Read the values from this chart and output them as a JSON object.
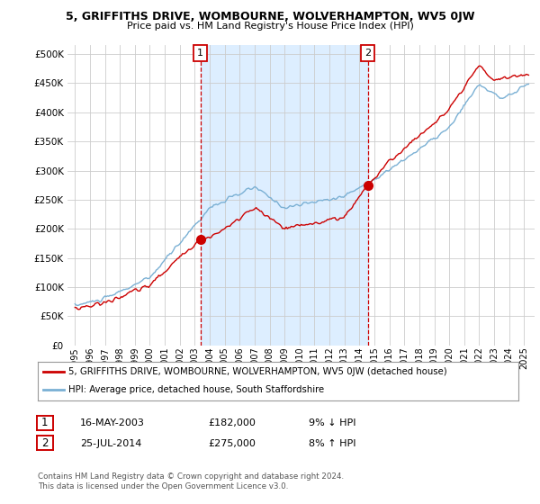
{
  "title": "5, GRIFFITHS DRIVE, WOMBOURNE, WOLVERHAMPTON, WV5 0JW",
  "subtitle": "Price paid vs. HM Land Registry's House Price Index (HPI)",
  "ytick_values": [
    0,
    50000,
    100000,
    150000,
    200000,
    250000,
    300000,
    350000,
    400000,
    450000,
    500000
  ],
  "ylim": [
    0,
    515000
  ],
  "xlim_start": 1994.5,
  "xlim_end": 2025.7,
  "line1_color": "#cc0000",
  "line2_color": "#7ab0d4",
  "shade_color": "#ddeeff",
  "marker1_date": 2003.37,
  "marker1_value": 182000,
  "marker1_label": "1",
  "marker2_date": 2014.56,
  "marker2_value": 275000,
  "marker2_label": "2",
  "vline1_x": 2003.37,
  "vline2_x": 2014.56,
  "legend_line1": "5, GRIFFITHS DRIVE, WOMBOURNE, WOLVERHAMPTON, WV5 0JW (detached house)",
  "legend_line2": "HPI: Average price, detached house, South Staffordshire",
  "table_row1_num": "1",
  "table_row1_date": "16-MAY-2003",
  "table_row1_price": "£182,000",
  "table_row1_hpi": "9% ↓ HPI",
  "table_row2_num": "2",
  "table_row2_date": "25-JUL-2014",
  "table_row2_price": "£275,000",
  "table_row2_hpi": "8% ↑ HPI",
  "footnote": "Contains HM Land Registry data © Crown copyright and database right 2024.\nThis data is licensed under the Open Government Licence v3.0.",
  "background_color": "#ffffff",
  "grid_color": "#cccccc"
}
